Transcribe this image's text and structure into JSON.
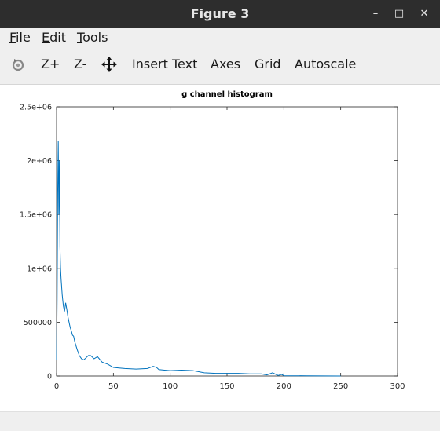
{
  "window": {
    "title": "Figure 3",
    "controls": {
      "minimize": "–",
      "maximize": "□",
      "close": "✕"
    }
  },
  "menubar": {
    "file": {
      "mnemonic": "F",
      "rest": "ile"
    },
    "edit": {
      "mnemonic": "E",
      "rest": "dit"
    },
    "tools": {
      "mnemonic": "T",
      "rest": "ools"
    }
  },
  "toolbar": {
    "rotate_icon": "rotate-icon",
    "zoom_in": "Z+",
    "zoom_out": "Z-",
    "pan_icon": "pan-move-icon",
    "insert_text": "Insert Text",
    "axes": "Axes",
    "grid": "Grid",
    "autoscale": "Autoscale"
  },
  "chart_data": {
    "type": "line",
    "title": "g channel histogram",
    "xlabel": "",
    "ylabel": "",
    "xlim": [
      0,
      300
    ],
    "ylim": [
      0,
      2500000
    ],
    "grid": false,
    "x_ticks": [
      0,
      50,
      100,
      150,
      200,
      250,
      300
    ],
    "x_tick_labels": [
      "0",
      "50",
      "100",
      "150",
      "200",
      "250",
      "300"
    ],
    "y_ticks": [
      0,
      500000,
      1000000,
      1500000,
      2000000,
      2500000
    ],
    "y_tick_labels": [
      "0",
      "500000",
      "1e+06",
      "1.5e+06",
      "2e+06",
      "2.5e+06"
    ],
    "line_color": "#0072bd",
    "series": [
      {
        "x": [
          0,
          0.5,
          1,
          1.5,
          2,
          2.5,
          3,
          3.5,
          4,
          5,
          6,
          7,
          8,
          9,
          10,
          11,
          12,
          13,
          14,
          15,
          16,
          18,
          20,
          22,
          24,
          26,
          28,
          30,
          33,
          36,
          40,
          45,
          50,
          55,
          60,
          70,
          80,
          85,
          88,
          90,
          95,
          100,
          110,
          120,
          130,
          140,
          150,
          160,
          170,
          180,
          185,
          190,
          192,
          195,
          198,
          200,
          220,
          250
        ],
        "y": [
          150000,
          700000,
          1700000,
          2180000,
          1500000,
          2000000,
          1200000,
          1000000,
          900000,
          750000,
          650000,
          600000,
          680000,
          620000,
          550000,
          500000,
          450000,
          420000,
          380000,
          370000,
          320000,
          250000,
          190000,
          160000,
          150000,
          170000,
          190000,
          190000,
          160000,
          180000,
          130000,
          110000,
          80000,
          75000,
          70000,
          65000,
          70000,
          90000,
          80000,
          60000,
          55000,
          50000,
          55000,
          50000,
          30000,
          25000,
          25000,
          25000,
          20000,
          20000,
          10000,
          30000,
          20000,
          5000,
          15000,
          3000,
          2000,
          0
        ]
      }
    ]
  }
}
